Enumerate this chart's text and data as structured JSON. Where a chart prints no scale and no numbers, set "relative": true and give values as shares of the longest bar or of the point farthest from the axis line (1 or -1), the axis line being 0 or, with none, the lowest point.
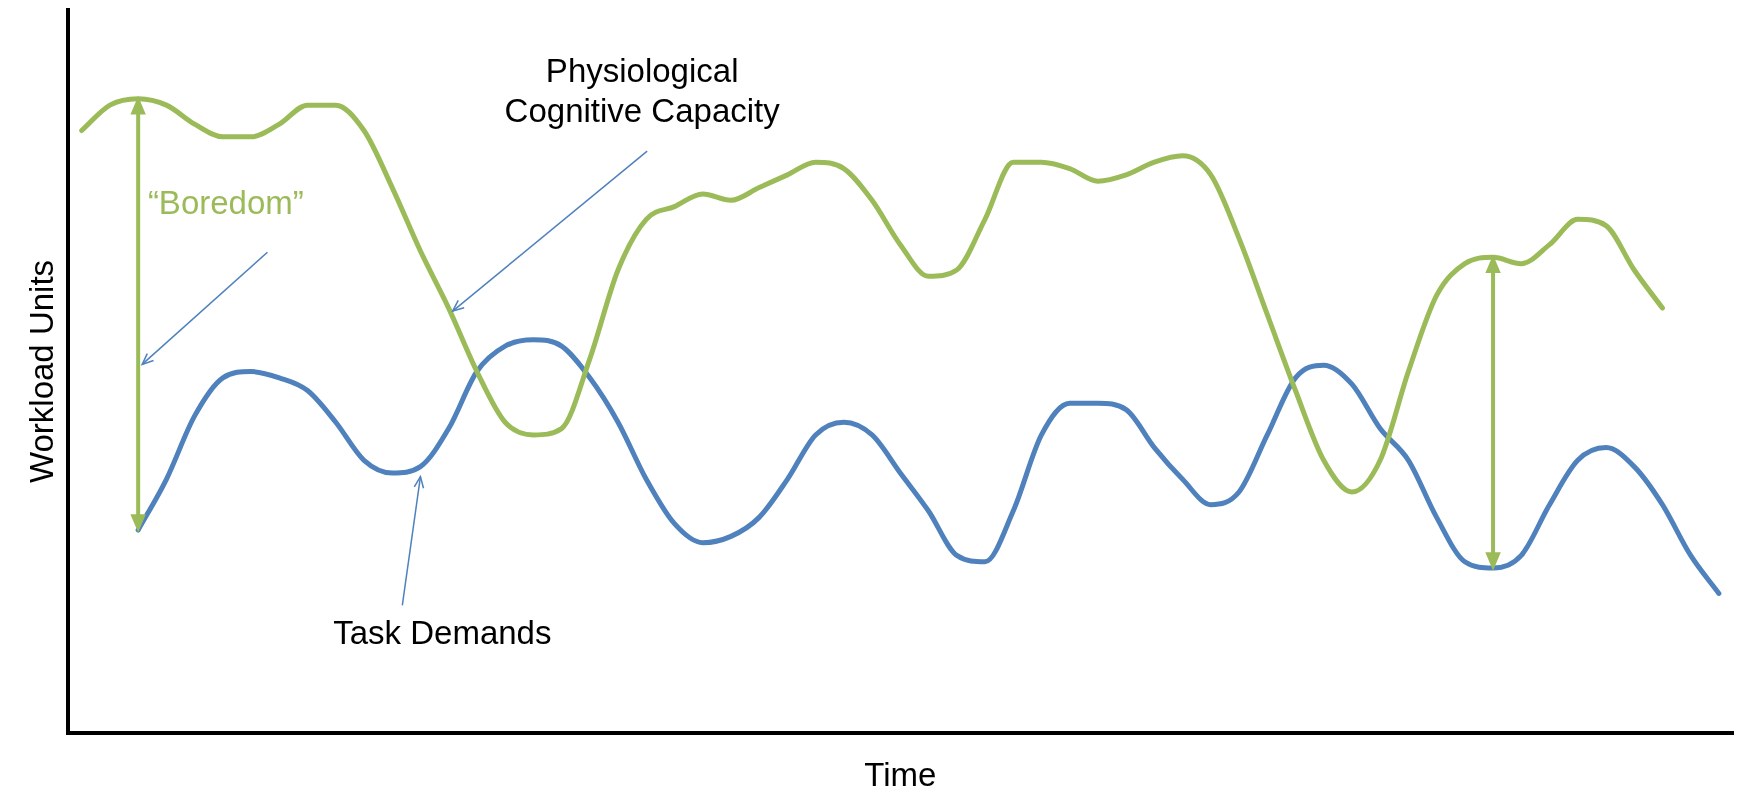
{
  "chart_data": {
    "type": "line",
    "relative": true,
    "xlabel": "Time",
    "ylabel": "Workload Units",
    "legend": false,
    "grid": false,
    "marker": "none",
    "line_style": "solid",
    "categories": [
      null,
      null,
      null,
      null,
      null,
      null,
      null,
      null,
      null,
      null,
      null,
      null,
      null,
      null,
      null,
      null,
      null,
      null,
      null,
      null,
      null,
      null,
      null,
      null,
      null,
      null,
      null,
      null,
      null,
      null,
      null,
      null,
      null,
      null,
      null,
      null,
      null,
      null,
      null,
      null,
      null,
      null,
      null,
      null,
      null,
      null,
      null,
      null,
      null,
      null,
      null,
      null,
      null,
      null,
      null,
      null,
      null,
      null,
      null
    ],
    "series": [
      {
        "name": "Physiological Cognitive Capacity",
        "color": "#9bbb59",
        "values": [
          0.95,
          0.99,
          1,
          0.99,
          0.96,
          0.94,
          0.94,
          0.96,
          0.99,
          0.99,
          0.95,
          0.86,
          0.76,
          0.67,
          0.57,
          0.49,
          0.47,
          0.48,
          0.59,
          0.73,
          0.81,
          0.83,
          0.85,
          0.84,
          0.86,
          0.88,
          0.9,
          0.89,
          0.84,
          0.77,
          0.72,
          0.73,
          0.81,
          0.9,
          0.9,
          0.89,
          0.87,
          0.88,
          0.9,
          0.91,
          0.88,
          0.78,
          0.66,
          0.54,
          0.43,
          0.38,
          0.43,
          0.57,
          0.69,
          0.74,
          0.75,
          0.74,
          0.77,
          0.81,
          0.8,
          0.73,
          0.67,
          null,
          null
        ]
      },
      {
        "name": "Task Demands",
        "color": "#4f81bd",
        "values": [
          null,
          null,
          0.32,
          0.4,
          0.5,
          0.56,
          0.57,
          0.56,
          0.54,
          0.49,
          0.43,
          0.41,
          0.42,
          0.48,
          0.57,
          0.61,
          0.62,
          0.61,
          0.56,
          0.49,
          0.4,
          0.33,
          0.3,
          0.31,
          0.34,
          0.4,
          0.47,
          0.49,
          0.47,
          0.41,
          0.35,
          0.28,
          0.27,
          0.35,
          0.47,
          0.52,
          0.52,
          0.51,
          0.45,
          0.4,
          0.36,
          0.38,
          0.47,
          0.56,
          0.58,
          0.55,
          0.48,
          0.43,
          0.34,
          0.27,
          0.26,
          0.28,
          0.36,
          0.43,
          0.45,
          0.42,
          0.36,
          0.28,
          0.22
        ]
      }
    ],
    "annotations": [
      "“Boredom”"
    ]
  }
}
